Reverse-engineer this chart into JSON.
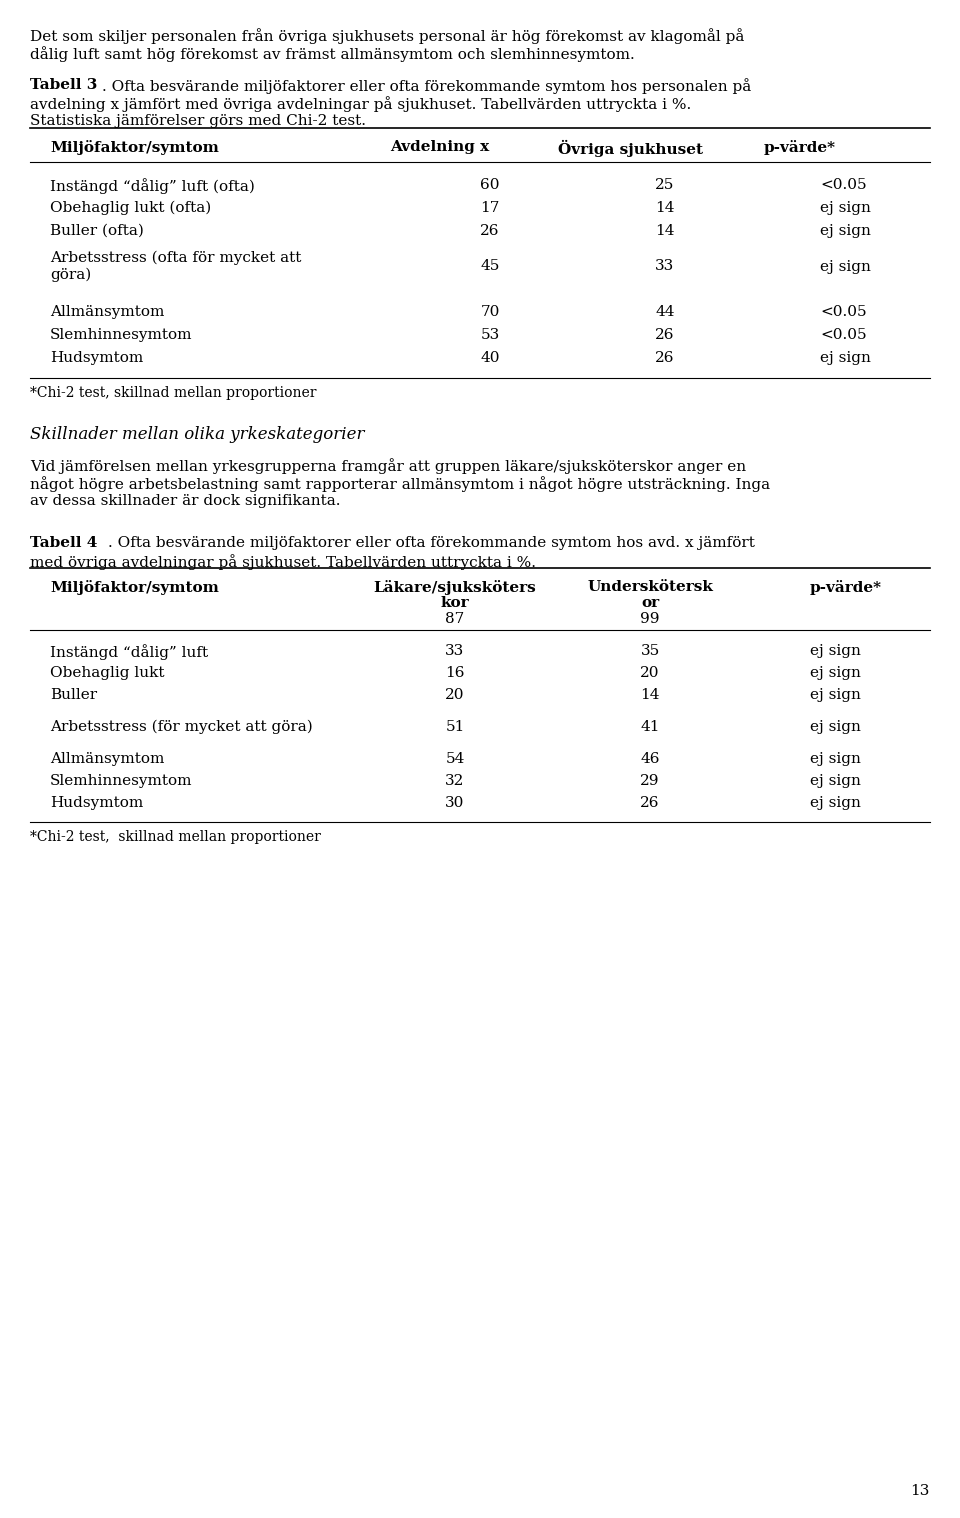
{
  "page_number": "13",
  "background_color": "#ffffff",
  "text_color": "#000000",
  "intro_text": "Det som skiljer personalen från övriga sjukhusets personal är hög förekomst av klagomål på\ndålig luft samt hög förekomst av främst allmänsymtom och slemhinnesymtom.",
  "tabell3_caption_bold": "Tabell 3",
  "tabell3_caption_line1_rest": ". Ofta besvärande miljöfaktorer eller ofta förekommande symtom hos personalen på",
  "tabell3_caption_line2": "avdelning x jämfört med övriga avdelningar på sjukhuset. Tabellvärden uttryckta i %.",
  "tabell3_caption_line3": "Statistiska jämförelser görs med Chi-2 test.",
  "tabell3_col_headers": [
    "Miljöfaktor/symtom",
    "Avdelning x",
    "Övriga sjukhuset",
    "p-värde*"
  ],
  "tabell3_rows": [
    [
      "Instängd “dålig” luft (ofta)",
      "60",
      "25",
      "<0.05"
    ],
    [
      "Obehaglig lukt (ofta)",
      "17",
      "14",
      "ej sign"
    ],
    [
      "Buller (ofta)",
      "26",
      "14",
      "ej sign"
    ],
    [
      "Arbetsstress (ofta för mycket att\ngöra)",
      "45",
      "33",
      "ej sign"
    ],
    [
      "Allmänsymtom",
      "70",
      "44",
      "<0.05"
    ],
    [
      "Slemhinnesymtom",
      "53",
      "26",
      "<0.05"
    ],
    [
      "Hudsymtom",
      "40",
      "26",
      "ej sign"
    ]
  ],
  "tabell3_footnote": "*Chi-2 test, skillnad mellan proportioner",
  "section_italic": "Skillnader mellan olika yrkeskategorier",
  "para2_line1": "Vid jämförelsen mellan yrkesgrupperna framgår att gruppen läkare/sjuksköterskor anger en",
  "para2_line2": "något högre arbetsbelastning samt rapporterar allmänsymtom i något högre utsträckning. Inga",
  "para2_line3": "av dessa skillnader är dock signifikanta.",
  "tabell4_caption_bold": "Tabell 4",
  "tabell4_caption_line1_rest": ". Ofta besvärande miljöfaktorer eller ofta förekommande symtom hos avd. x jämfört",
  "tabell4_caption_line2": "med övriga avdelningar på sjukhuset. Tabellvärden uttryckta i %.",
  "tabell4_col_h1": "Miljöfaktor/symtom",
  "tabell4_col_h2a": "Läkare/sjuksköters",
  "tabell4_col_h2b": "kor",
  "tabell4_col_h2c": "87",
  "tabell4_col_h3a": "Underskötersk",
  "tabell4_col_h3b": "or",
  "tabell4_col_h3c": "99",
  "tabell4_col_h4": "p-värde*",
  "tabell4_rows": [
    [
      "Instängd “dålig” luft",
      "33",
      "35",
      "ej sign"
    ],
    [
      "Obehaglig lukt",
      "16",
      "20",
      "ej sign"
    ],
    [
      "Buller",
      "20",
      "14",
      "ej sign"
    ],
    [
      "Arbetsstress (för mycket att göra)",
      "51",
      "41",
      "ej sign"
    ],
    [
      "Allmänsymtom",
      "54",
      "46",
      "ej sign"
    ],
    [
      "Slemhinnesymtom",
      "32",
      "29",
      "ej sign"
    ],
    [
      "Hudsymtom",
      "30",
      "26",
      "ej sign"
    ]
  ],
  "tabell4_footnote": "*Chi-2 test,  skillnad mellan proportioner"
}
